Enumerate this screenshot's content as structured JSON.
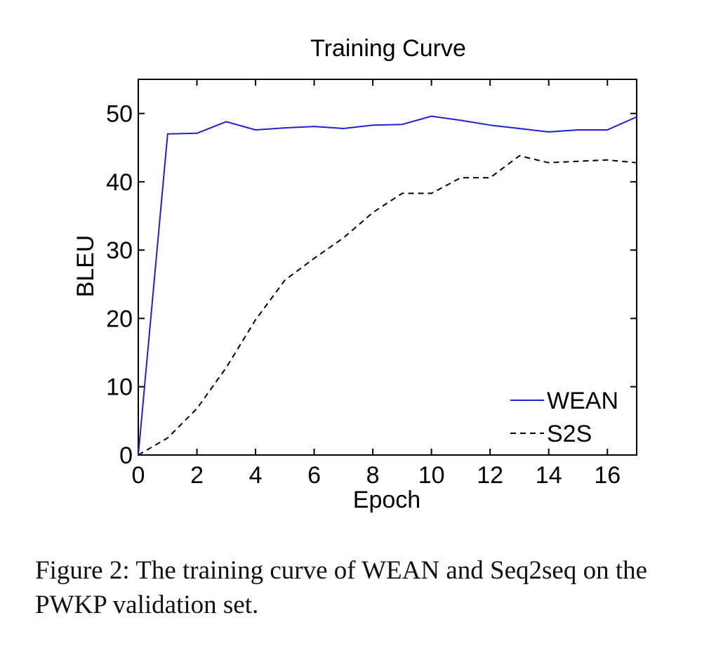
{
  "chart_data": {
    "type": "line",
    "title": "Training Curve",
    "xlabel": "Epoch",
    "ylabel": "BLEU",
    "xlim": [
      0,
      17
    ],
    "ylim": [
      0,
      55
    ],
    "x_ticks": [
      0,
      2,
      4,
      6,
      8,
      10,
      12,
      14,
      16
    ],
    "y_ticks": [
      0,
      10,
      20,
      30,
      40,
      50
    ],
    "grid": false,
    "legend_position": "bottom-right",
    "series": [
      {
        "name": "WEAN",
        "style": "solid",
        "color": "#1f1fd6",
        "x": [
          0,
          1,
          2,
          3,
          4,
          5,
          6,
          7,
          8,
          9,
          10,
          11,
          12,
          13,
          14,
          15,
          16,
          17
        ],
        "y": [
          0,
          47.0,
          47.1,
          48.8,
          47.6,
          47.9,
          48.1,
          47.8,
          48.3,
          48.4,
          49.6,
          49.0,
          48.3,
          47.8,
          47.3,
          47.6,
          47.6,
          49.5
        ]
      },
      {
        "name": "S2S",
        "style": "dashed",
        "color": "#000000",
        "x": [
          0,
          1,
          2,
          3,
          4,
          5,
          6,
          7,
          8,
          9,
          10,
          11,
          12,
          13,
          14,
          15,
          16,
          17
        ],
        "y": [
          0,
          2.5,
          6.8,
          12.8,
          19.8,
          25.6,
          28.8,
          31.8,
          35.5,
          38.3,
          38.3,
          40.6,
          40.6,
          43.8,
          42.8,
          43.0,
          43.2,
          42.8
        ]
      }
    ]
  },
  "caption": "Figure 2: The training curve of WEAN and Seq2seq on the PWKP validation set."
}
